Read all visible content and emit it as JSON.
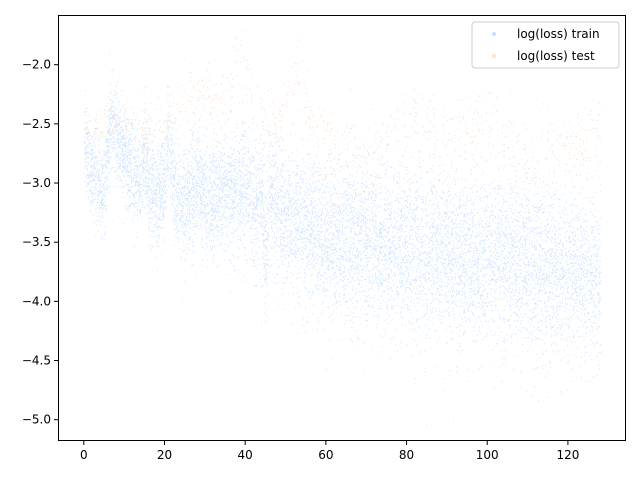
{
  "chart_data": {
    "type": "scatter",
    "title": "",
    "xlabel": "",
    "ylabel": "",
    "xlim": [
      -6.4,
      134.4
    ],
    "ylim": [
      -5.18,
      -1.58
    ],
    "x_ticks": [
      0,
      20,
      40,
      60,
      80,
      100,
      120
    ],
    "x_tick_labels": [
      "0",
      "20",
      "40",
      "60",
      "80",
      "100",
      "120"
    ],
    "y_ticks": [
      -5.0,
      -4.5,
      -4.0,
      -3.5,
      -3.0,
      -2.5,
      -2.0
    ],
    "y_tick_labels": [
      "−5.0",
      "−4.5",
      "−4.0",
      "−3.5",
      "−3.0",
      "−2.5",
      "−2.0"
    ],
    "grid": false,
    "legend_position": "top-right",
    "series": [
      {
        "name": "log(loss) train",
        "color": "#1e7cf5",
        "marker_alpha": 0.18,
        "points_per_unit_x": 90,
        "trend": {
          "x": [
            0,
            2,
            4,
            5,
            6,
            7,
            8,
            10,
            12,
            14,
            15,
            16,
            18,
            20,
            21,
            22,
            24,
            26,
            28,
            30,
            32,
            34,
            36,
            38,
            40,
            42,
            44,
            45,
            46,
            48,
            50,
            55,
            60,
            70,
            80,
            90,
            100,
            110,
            120,
            128
          ],
          "y": [
            -2.7,
            -2.9,
            -3.0,
            -3.1,
            -2.6,
            -2.5,
            -2.6,
            -2.8,
            -2.9,
            -3.0,
            -2.75,
            -3.0,
            -3.1,
            -3.0,
            -2.6,
            -3.0,
            -3.2,
            -3.1,
            -3.0,
            -3.1,
            -3.15,
            -3.1,
            -3.1,
            -3.05,
            -3.0,
            -3.2,
            -3.1,
            -3.6,
            -3.05,
            -3.2,
            -3.3,
            -3.35,
            -3.45,
            -3.5,
            -3.55,
            -3.6,
            -3.65,
            -3.7,
            -3.75,
            -3.8
          ]
        },
        "spread": {
          "x": [
            0,
            20,
            45,
            60,
            80,
            100,
            128
          ],
          "y": [
            0.18,
            0.22,
            0.28,
            0.32,
            0.35,
            0.35,
            0.35
          ]
        }
      },
      {
        "name": "log(loss) test",
        "color": "#f5a66a",
        "marker_alpha": 0.32,
        "points_per_unit_x": 7,
        "trend": {
          "x": [
            0,
            3,
            6,
            8,
            10,
            15,
            20,
            24,
            28,
            32,
            36,
            38,
            39,
            42,
            45,
            48,
            53,
            56,
            60,
            65,
            70,
            75,
            80,
            85,
            90,
            95,
            100,
            105,
            108,
            112,
            116,
            120,
            124,
            128
          ],
          "y": [
            -2.6,
            -2.6,
            -2.5,
            -2.45,
            -2.5,
            -2.6,
            -2.5,
            -2.35,
            -2.25,
            -2.3,
            -2.3,
            -1.8,
            -1.85,
            -2.35,
            -2.5,
            -2.55,
            -2.0,
            -2.5,
            -2.6,
            -2.7,
            -2.9,
            -2.75,
            -2.35,
            -2.5,
            -2.6,
            -2.55,
            -2.45,
            -2.7,
            -2.9,
            -2.7,
            -2.65,
            -2.7,
            -2.65,
            -2.55
          ]
        },
        "spread": {
          "x": [
            0,
            40,
            80,
            128
          ],
          "y": [
            0.1,
            0.13,
            0.16,
            0.15
          ]
        }
      }
    ]
  }
}
